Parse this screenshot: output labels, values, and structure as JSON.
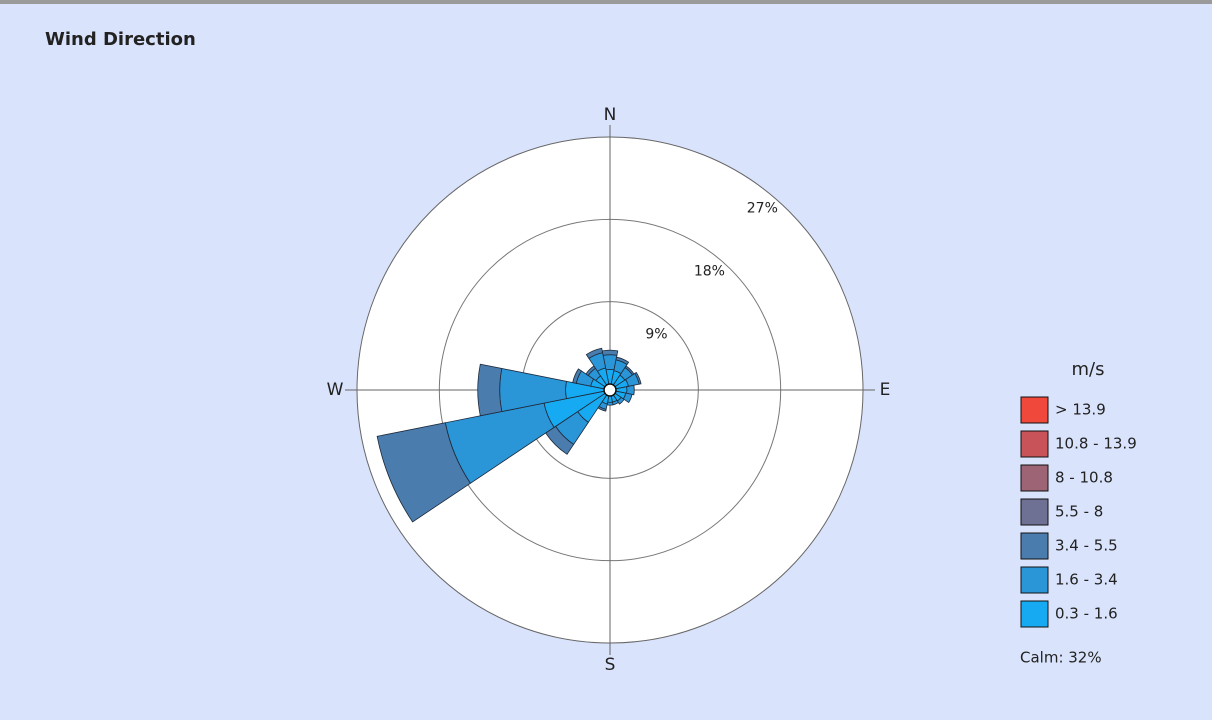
{
  "chart_data": {
    "type": "windrose",
    "title": "Wind Direction",
    "categories": [
      "N",
      null,
      null,
      null,
      "E",
      null,
      null,
      null,
      "S",
      null,
      null,
      null,
      "W",
      null,
      null,
      null
    ],
    "rlim": [
      0,
      27
    ],
    "rticks": [
      {
        "value": 9,
        "label": "9%"
      },
      {
        "value": 18,
        "label": "18%"
      },
      {
        "value": 27,
        "label": "27%"
      }
    ],
    "legend_title": "m/s",
    "calm_label": "Calm: 32%",
    "series": [
      {
        "name": "> 13.9",
        "color": "#f0483a",
        "values": [
          0,
          0,
          0,
          0,
          0,
          0,
          0,
          0,
          0,
          0,
          0,
          0,
          0,
          0,
          0,
          0
        ]
      },
      {
        "name": "10.8 - 13.9",
        "color": "#c8545a",
        "values": [
          0,
          0,
          0,
          0,
          0,
          0,
          0,
          0,
          0,
          0,
          0,
          0,
          0,
          0,
          0,
          0
        ]
      },
      {
        "name": "8 - 10.8",
        "color": "#9c6474",
        "values": [
          0,
          0,
          0,
          0,
          0,
          0,
          0,
          0,
          0,
          0,
          0,
          0,
          0,
          0,
          0,
          0
        ]
      },
      {
        "name": "5.5 - 8",
        "color": "#6e7094",
        "values": [
          0,
          0,
          0,
          0,
          0,
          0,
          0,
          0,
          0,
          0,
          0,
          0,
          0,
          0,
          0,
          0
        ]
      },
      {
        "name": "3.4 - 5.5",
        "color": "#4a7cad",
        "values": [
          0.5,
          0.3,
          0.2,
          0.2,
          0,
          0,
          0,
          0,
          0,
          0.2,
          1.3,
          7.6,
          2.4,
          0.4,
          0.3,
          0.5
        ]
      },
      {
        "name": "1.6 - 3.4",
        "color": "#2a96d8",
        "values": [
          1.6,
          1.2,
          1.0,
          1.2,
          0.8,
          0.7,
          0.4,
          0.3,
          0.3,
          0.6,
          2.9,
          11.0,
          7.2,
          1.6,
          1.0,
          1.7
        ]
      },
      {
        "name": "0.3 - 1.6",
        "color": "#16aaf2",
        "values": [
          1.6,
          1.5,
          1.3,
          1.4,
          1.2,
          1.1,
          0.8,
          0.7,
          0.7,
          0.9,
          3.6,
          6.7,
          4.2,
          1.5,
          1.2,
          1.8
        ]
      }
    ]
  }
}
